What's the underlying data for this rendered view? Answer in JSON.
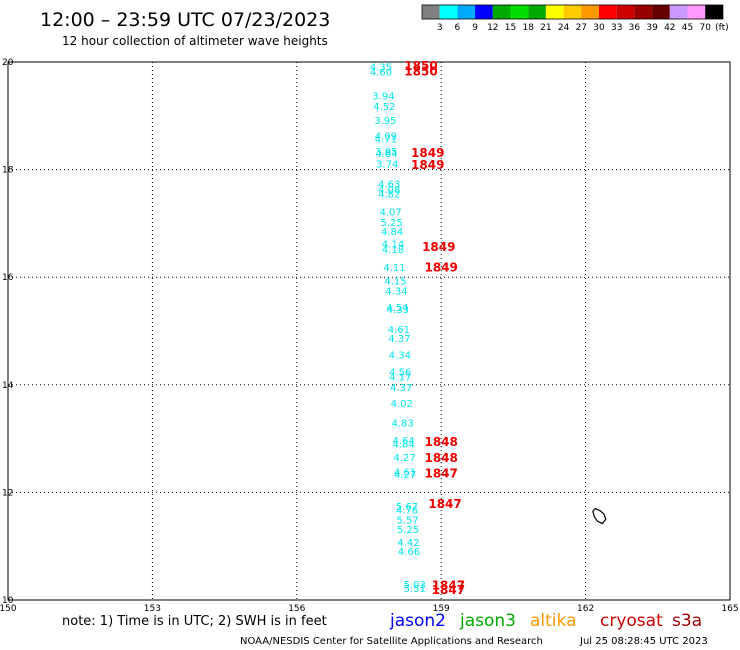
{
  "header": {
    "title": "12:00 – 23:59 UTC 07/23/2023",
    "subtitle": "12 hour collection of altimeter wave heights"
  },
  "colorbar": {
    "colors": [
      "#808080",
      "#00ffff",
      "#00aaff",
      "#0000ff",
      "#00aa00",
      "#00dd00",
      "#00aa00",
      "#ffff00",
      "#ffcc00",
      "#ff9900",
      "#ff0000",
      "#cc0000",
      "#990000",
      "#660000",
      "#cc99ff",
      "#ff99ff",
      "#000000"
    ],
    "labels": [
      "3",
      "6",
      "9",
      "12",
      "15",
      "18",
      "21",
      "24",
      "27",
      "30",
      "33",
      "36",
      "39",
      "42",
      "45",
      "70",
      "(ft)"
    ]
  },
  "footer": {
    "note": "note:  1) Time is in UTC; 2) SWH is in feet",
    "satellites": [
      {
        "name": "jason2",
        "color": "#0000ff"
      },
      {
        "name": "jason3",
        "color": "#00aa00"
      },
      {
        "name": "altika",
        "color": "#ff9900"
      },
      {
        "name": "cryosat",
        "color": "#cc0000"
      },
      {
        "name": "s3a",
        "color": "#990000"
      }
    ],
    "credit": "NOAA/NESDIS Center for Satellite Applications and Research",
    "timestamp": "Jul 25 08:28:45 UTC 2023"
  },
  "chart_data": {
    "type": "scatter",
    "xlim": [
      150,
      165
    ],
    "ylim": [
      10,
      20
    ],
    "x_ticks": [
      "150",
      "153",
      "156",
      "159",
      "162",
      "165"
    ],
    "y_ticks": [
      "10",
      "12",
      "14",
      "16",
      "18",
      "20"
    ],
    "grid": true,
    "swh_color": "#00e5ee",
    "time_color": "#ee0000",
    "swh_points": [
      {
        "x": 157.75,
        "y": 19.92,
        "label": "4.35"
      },
      {
        "x": 157.75,
        "y": 19.82,
        "label": "4.60"
      },
      {
        "x": 157.8,
        "y": 19.38,
        "label": "3.94"
      },
      {
        "x": 157.82,
        "y": 19.18,
        "label": "4.52"
      },
      {
        "x": 157.84,
        "y": 18.92,
        "label": "3.95"
      },
      {
        "x": 157.85,
        "y": 18.63,
        "label": "4.09"
      },
      {
        "x": 157.85,
        "y": 18.58,
        "label": "4.71"
      },
      {
        "x": 157.86,
        "y": 18.35,
        "label": "3.95"
      },
      {
        "x": 157.86,
        "y": 18.31,
        "label": "4.64"
      },
      {
        "x": 157.88,
        "y": 18.11,
        "label": "3.74"
      },
      {
        "x": 157.92,
        "y": 17.74,
        "label": "4.63"
      },
      {
        "x": 157.92,
        "y": 17.64,
        "label": "4.08"
      },
      {
        "x": 157.92,
        "y": 17.56,
        "label": "4.82"
      },
      {
        "x": 157.95,
        "y": 17.22,
        "label": "4.07"
      },
      {
        "x": 157.97,
        "y": 17.03,
        "label": "5.25"
      },
      {
        "x": 157.98,
        "y": 16.86,
        "label": "4.84"
      },
      {
        "x": 158.0,
        "y": 16.63,
        "label": "4.14"
      },
      {
        "x": 158.0,
        "y": 16.52,
        "label": "4.18"
      },
      {
        "x": 158.03,
        "y": 16.19,
        "label": "4.11"
      },
      {
        "x": 158.05,
        "y": 15.94,
        "label": "4.15"
      },
      {
        "x": 158.07,
        "y": 15.75,
        "label": "4.34"
      },
      {
        "x": 158.09,
        "y": 15.45,
        "label": "4.54"
      },
      {
        "x": 158.1,
        "y": 15.41,
        "label": "4.33"
      },
      {
        "x": 158.12,
        "y": 15.04,
        "label": "4.61"
      },
      {
        "x": 158.13,
        "y": 14.87,
        "label": "4.37"
      },
      {
        "x": 158.14,
        "y": 14.56,
        "label": "4.34"
      },
      {
        "x": 158.15,
        "y": 14.25,
        "label": "4.56"
      },
      {
        "x": 158.15,
        "y": 14.15,
        "label": "4.17"
      },
      {
        "x": 158.17,
        "y": 13.96,
        "label": "4.37"
      },
      {
        "x": 158.18,
        "y": 13.66,
        "label": "4.02"
      },
      {
        "x": 158.2,
        "y": 13.3,
        "label": "4.83"
      },
      {
        "x": 158.22,
        "y": 12.97,
        "label": "4.64"
      },
      {
        "x": 158.22,
        "y": 12.91,
        "label": "4.84"
      },
      {
        "x": 158.24,
        "y": 12.66,
        "label": "4.27"
      },
      {
        "x": 158.25,
        "y": 12.39,
        "label": "4.61"
      },
      {
        "x": 158.25,
        "y": 12.34,
        "label": "4.27"
      },
      {
        "x": 158.29,
        "y": 11.75,
        "label": "5.67"
      },
      {
        "x": 158.29,
        "y": 11.68,
        "label": "4.76"
      },
      {
        "x": 158.3,
        "y": 11.5,
        "label": "5.57"
      },
      {
        "x": 158.31,
        "y": 11.32,
        "label": "5.25"
      },
      {
        "x": 158.32,
        "y": 11.08,
        "label": "4.42"
      },
      {
        "x": 158.33,
        "y": 10.91,
        "label": "4.66"
      },
      {
        "x": 158.45,
        "y": 10.3,
        "label": "5.03"
      },
      {
        "x": 158.45,
        "y": 10.22,
        "label": "5.51"
      }
    ],
    "time_labels": [
      {
        "x": 158.58,
        "y": 19.94,
        "label": "1850"
      },
      {
        "x": 158.58,
        "y": 19.84,
        "label": "1850"
      },
      {
        "x": 158.72,
        "y": 18.33,
        "label": "1849"
      },
      {
        "x": 158.72,
        "y": 18.1,
        "label": "1849"
      },
      {
        "x": 158.95,
        "y": 16.58,
        "label": "1849"
      },
      {
        "x": 159.0,
        "y": 16.2,
        "label": "1849"
      },
      {
        "x": 159.0,
        "y": 12.96,
        "label": "1848"
      },
      {
        "x": 159.0,
        "y": 12.66,
        "label": "1848"
      },
      {
        "x": 159.0,
        "y": 12.37,
        "label": "1847"
      },
      {
        "x": 159.08,
        "y": 11.8,
        "label": "1847"
      },
      {
        "x": 159.15,
        "y": 10.29,
        "label": "1847"
      },
      {
        "x": 159.15,
        "y": 10.2,
        "label": "1847"
      }
    ],
    "island_outline": [
      [
        162.2,
        11.7
      ],
      [
        162.3,
        11.66
      ],
      [
        162.38,
        11.6
      ],
      [
        162.42,
        11.5
      ],
      [
        162.35,
        11.42
      ],
      [
        162.25,
        11.46
      ],
      [
        162.18,
        11.55
      ],
      [
        162.15,
        11.65
      ]
    ]
  }
}
